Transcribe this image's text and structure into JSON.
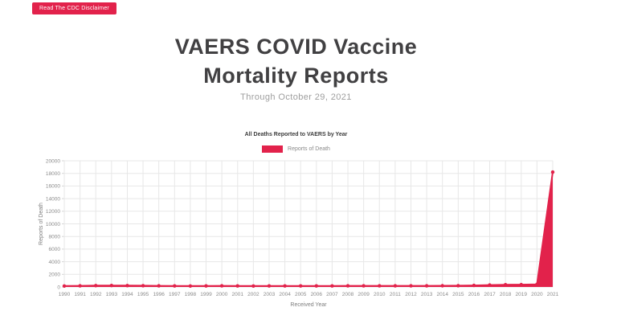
{
  "page": {
    "disclaimer_button": "Read The CDC Disclaimer",
    "title": "VAERS COVID Vaccine Mortality Reports",
    "subtitle": "Through October 29, 2021"
  },
  "colors": {
    "accent_red": "#e2224b",
    "grid": "#e7e7e7",
    "axis_text": "#8b8b8b",
    "title_text": "#414042",
    "subtitle_text": "#9e9e9e",
    "background": "#ffffff"
  },
  "chart_data": {
    "type": "area",
    "title": "All Deaths Reported to VAERS by Year",
    "legend": [
      {
        "label": "Reports of Death",
        "color": "#e2224b"
      }
    ],
    "legend_position": "top",
    "xlabel": "Received Year",
    "ylabel": "Reports of Death",
    "ylim": [
      0,
      20000
    ],
    "ytick_step": 2000,
    "grid": true,
    "categories": [
      "1990",
      "1991",
      "1992",
      "1993",
      "1994",
      "1995",
      "1996",
      "1997",
      "1998",
      "1999",
      "2000",
      "2001",
      "2002",
      "2003",
      "2004",
      "2005",
      "2006",
      "2007",
      "2008",
      "2009",
      "2010",
      "2011",
      "2012",
      "2013",
      "2014",
      "2015",
      "2016",
      "2017",
      "2018",
      "2019",
      "2020",
      "2021"
    ],
    "values": [
      148,
      182,
      212,
      226,
      218,
      202,
      182,
      162,
      158,
      168,
      172,
      164,
      158,
      170,
      162,
      164,
      160,
      170,
      176,
      180,
      178,
      182,
      172,
      178,
      188,
      202,
      240,
      302,
      360,
      370,
      420,
      18200
    ]
  }
}
